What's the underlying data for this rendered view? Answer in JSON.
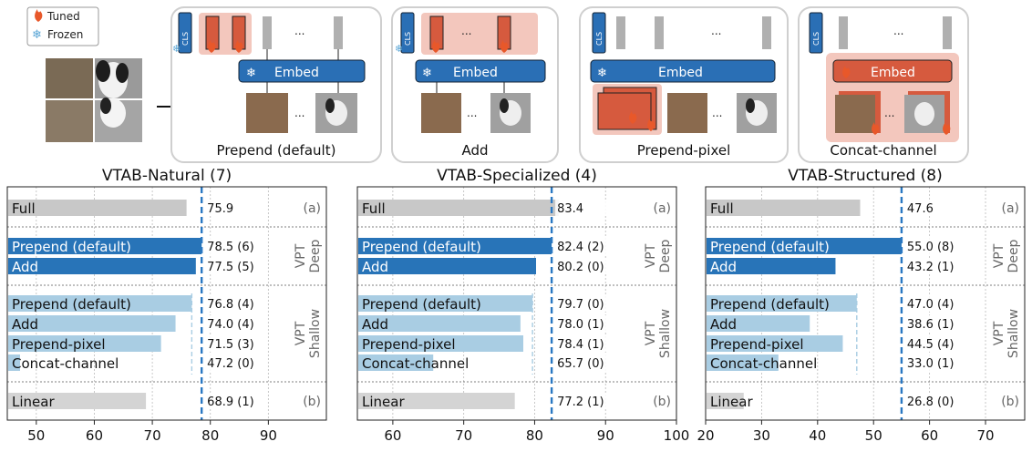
{
  "legend": {
    "tuned": "Tuned",
    "frozen": "Frozen"
  },
  "method_panels": [
    {
      "caption": "Prepend (default)"
    },
    {
      "caption": "Add"
    },
    {
      "caption": "Prepend-pixel"
    },
    {
      "caption": "Concat-channel"
    }
  ],
  "panel_text": {
    "cls": "CLS",
    "embed": "Embed",
    "ellipsis": "..."
  },
  "colors": {
    "deep_bar": "#2874b8",
    "shallow_bar": "#a9cde3",
    "gray_bar": "#c8c8c8",
    "linear_bar": "#d4d4d4",
    "ref_line": "#2a78c2",
    "tuned": "#d65a3e",
    "frozen": "#1f6fb6"
  },
  "row_labels": {
    "full": "Full",
    "prepend": "Prepend (default)",
    "add": "Add",
    "prepend_pixel": "Prepend-pixel",
    "concat_channel": "Concat-channel",
    "linear": "Linear"
  },
  "group_labels": {
    "vpt_deep": [
      "VPT",
      "Deep"
    ],
    "vpt_shallow": [
      "VPT",
      "Shallow"
    ],
    "a": "(a)",
    "b": "(b)"
  },
  "chart_data": [
    {
      "type": "bar",
      "title": "VTAB-Natural (7)",
      "xlim": [
        45,
        100
      ],
      "xticks": [
        50,
        60,
        70,
        80,
        90
      ],
      "ref_line": 78.5,
      "shallow_ref": 76.8,
      "categories": [
        "Full",
        "Prepend (default)",
        "Add",
        "Prepend (default)",
        "Add",
        "Prepend-pixel",
        "Concat-channel",
        "Linear"
      ],
      "values": [
        75.9,
        78.5,
        77.5,
        76.8,
        74.0,
        71.5,
        47.2,
        68.9
      ],
      "value_labels": [
        "75.9",
        "78.5 (6)",
        "77.5 (5)",
        "76.8 (4)",
        "74.0 (4)",
        "71.5 (3)",
        "47.2 (0)",
        "68.9 (1)"
      ]
    },
    {
      "type": "bar",
      "title": "VTAB-Specialized (4)",
      "xlim": [
        55,
        100
      ],
      "xticks": [
        60,
        70,
        80,
        90,
        100
      ],
      "ref_line": 82.4,
      "shallow_ref": 79.7,
      "categories": [
        "Full",
        "Prepend (default)",
        "Add",
        "Prepend (default)",
        "Add",
        "Prepend-pixel",
        "Concat-channel",
        "Linear"
      ],
      "values": [
        83.4,
        82.4,
        80.2,
        79.7,
        78.0,
        78.4,
        65.7,
        77.2
      ],
      "value_labels": [
        "83.4",
        "82.4 (2)",
        "80.2 (0)",
        "79.7 (0)",
        "78.0 (1)",
        "78.4 (1)",
        "65.7 (0)",
        "77.2 (1)"
      ]
    },
    {
      "type": "bar",
      "title": "VTAB-Structured (8)",
      "xlim": [
        20,
        77
      ],
      "xticks": [
        20,
        30,
        40,
        50,
        60,
        70
      ],
      "ref_line": 55.0,
      "shallow_ref": 47.0,
      "categories": [
        "Full",
        "Prepend (default)",
        "Add",
        "Prepend (default)",
        "Add",
        "Prepend-pixel",
        "Concat-channel",
        "Linear"
      ],
      "values": [
        47.6,
        55.0,
        43.2,
        47.0,
        38.6,
        44.5,
        33.0,
        26.8
      ],
      "value_labels": [
        "47.6",
        "55.0 (8)",
        "43.2 (1)",
        "47.0 (4)",
        "38.6 (1)",
        "44.5 (4)",
        "33.0 (1)",
        "26.8 (0)"
      ]
    }
  ]
}
